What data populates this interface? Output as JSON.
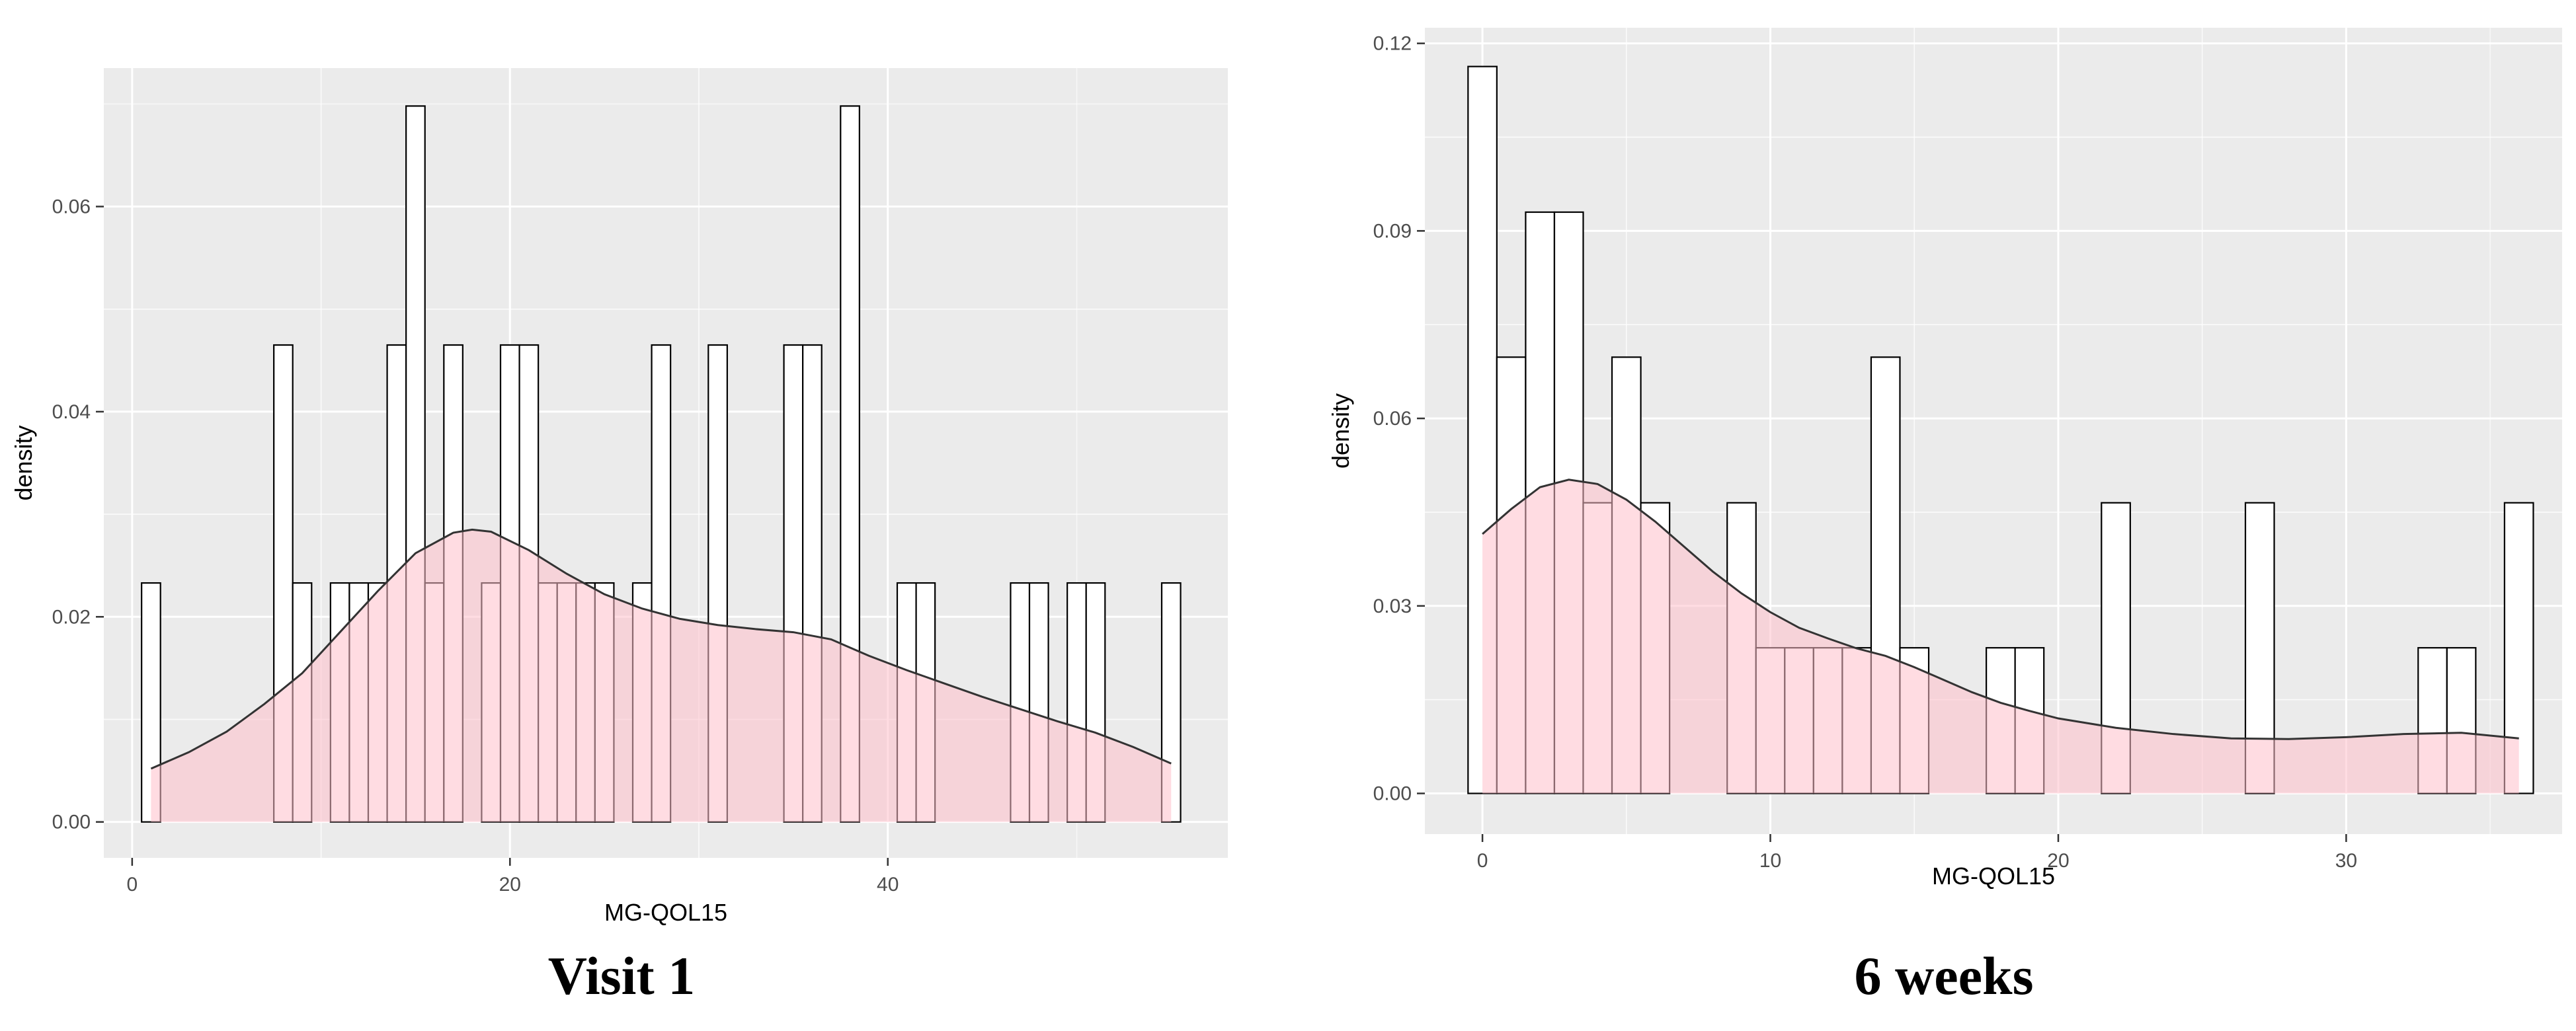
{
  "captions": [
    "Visit 1",
    "6 weeks"
  ],
  "colors": {
    "panel": "#ebebeb",
    "grid": "#ffffff",
    "bar_fill": "#ffffff",
    "bar_stroke": "#000000",
    "density_fill": "#ffc0cb",
    "density_stroke": "#333333",
    "tick_text": "#4d4d4d"
  },
  "chart_data": [
    {
      "type": "histogram",
      "title": "",
      "xlabel": "MG-QOL15",
      "ylabel": "density",
      "xlim": [
        -1.5,
        58
      ],
      "ylim": [
        -0.0035,
        0.0735
      ],
      "xticks": [
        0,
        20,
        40
      ],
      "yticks": [
        0,
        0.02,
        0.04,
        0.06
      ],
      "ytick_labels": [
        "0.00",
        "0.02",
        "0.04",
        "0.06"
      ],
      "bin_width": 1,
      "bins": [
        {
          "x": 1,
          "density": 0.0233
        },
        {
          "x": 8,
          "density": 0.0465
        },
        {
          "x": 9,
          "density": 0.0233
        },
        {
          "x": 11,
          "density": 0.0233
        },
        {
          "x": 12,
          "density": 0.0233
        },
        {
          "x": 13,
          "density": 0.0233
        },
        {
          "x": 14,
          "density": 0.0465
        },
        {
          "x": 15,
          "density": 0.0698
        },
        {
          "x": 16,
          "density": 0.0233
        },
        {
          "x": 17,
          "density": 0.0465
        },
        {
          "x": 19,
          "density": 0.0233
        },
        {
          "x": 20,
          "density": 0.0465
        },
        {
          "x": 21,
          "density": 0.0465
        },
        {
          "x": 22,
          "density": 0.0233
        },
        {
          "x": 23,
          "density": 0.0233
        },
        {
          "x": 24,
          "density": 0.0233
        },
        {
          "x": 25,
          "density": 0.0233
        },
        {
          "x": 27,
          "density": 0.0233
        },
        {
          "x": 28,
          "density": 0.0465
        },
        {
          "x": 31,
          "density": 0.0465
        },
        {
          "x": 35,
          "density": 0.0465
        },
        {
          "x": 36,
          "density": 0.0465
        },
        {
          "x": 38,
          "density": 0.0698
        },
        {
          "x": 41,
          "density": 0.0233
        },
        {
          "x": 42,
          "density": 0.0233
        },
        {
          "x": 47,
          "density": 0.0233
        },
        {
          "x": 48,
          "density": 0.0233
        },
        {
          "x": 50,
          "density": 0.0233
        },
        {
          "x": 51,
          "density": 0.0233
        },
        {
          "x": 55,
          "density": 0.0233
        }
      ],
      "density_curve": {
        "x": [
          1,
          3,
          5,
          7,
          9,
          11,
          13,
          15,
          17,
          18,
          19,
          21,
          23,
          25,
          27,
          29,
          31,
          33,
          35,
          37,
          39,
          41,
          43,
          45,
          47,
          49,
          51,
          53,
          55
        ],
        "y": [
          0.0052,
          0.0068,
          0.0088,
          0.0115,
          0.0145,
          0.0185,
          0.0225,
          0.0262,
          0.0282,
          0.0285,
          0.0283,
          0.0265,
          0.0242,
          0.0222,
          0.0208,
          0.0198,
          0.0192,
          0.0188,
          0.0185,
          0.0178,
          0.0162,
          0.0148,
          0.0135,
          0.0122,
          0.011,
          0.0098,
          0.0087,
          0.0073,
          0.0057
        ]
      }
    },
    {
      "type": "histogram",
      "title": "",
      "xlabel": "MG-QOL15",
      "ylabel": "density",
      "xlim": [
        -2,
        37.5
      ],
      "ylim": [
        -0.0065,
        0.1225
      ],
      "xticks": [
        0,
        10,
        20,
        30
      ],
      "yticks": [
        0,
        0.03,
        0.06,
        0.09,
        0.12
      ],
      "ytick_labels": [
        "0.00",
        "0.03",
        "0.06",
        "0.09",
        "0.12"
      ],
      "bin_width": 1,
      "bins": [
        {
          "x": 0,
          "density": 0.1163
        },
        {
          "x": 1,
          "density": 0.0698
        },
        {
          "x": 2,
          "density": 0.093
        },
        {
          "x": 3,
          "density": 0.093
        },
        {
          "x": 4,
          "density": 0.0465
        },
        {
          "x": 5,
          "density": 0.0698
        },
        {
          "x": 6,
          "density": 0.0465
        },
        {
          "x": 9,
          "density": 0.0465
        },
        {
          "x": 10,
          "density": 0.0233
        },
        {
          "x": 11,
          "density": 0.0233
        },
        {
          "x": 12,
          "density": 0.0233
        },
        {
          "x": 13,
          "density": 0.0233
        },
        {
          "x": 14,
          "density": 0.0698
        },
        {
          "x": 15,
          "density": 0.0233
        },
        {
          "x": 18,
          "density": 0.0233
        },
        {
          "x": 19,
          "density": 0.0233
        },
        {
          "x": 22,
          "density": 0.0465
        },
        {
          "x": 27,
          "density": 0.0465
        },
        {
          "x": 33,
          "density": 0.0233
        },
        {
          "x": 34,
          "density": 0.0233
        },
        {
          "x": 36,
          "density": 0.0465
        }
      ],
      "density_curve": {
        "x": [
          0,
          1,
          2,
          3,
          4,
          5,
          6,
          7,
          8,
          9,
          10,
          11,
          12,
          13,
          14,
          15,
          16,
          17,
          18,
          19,
          20,
          22,
          24,
          26,
          28,
          30,
          32,
          34,
          36
        ],
        "y": [
          0.0415,
          0.0455,
          0.049,
          0.0502,
          0.0495,
          0.047,
          0.0435,
          0.0395,
          0.0355,
          0.032,
          0.029,
          0.0265,
          0.0248,
          0.0232,
          0.022,
          0.0202,
          0.0182,
          0.0162,
          0.0145,
          0.0132,
          0.012,
          0.0105,
          0.0095,
          0.0088,
          0.0087,
          0.009,
          0.0095,
          0.0097,
          0.0088
        ]
      }
    }
  ]
}
